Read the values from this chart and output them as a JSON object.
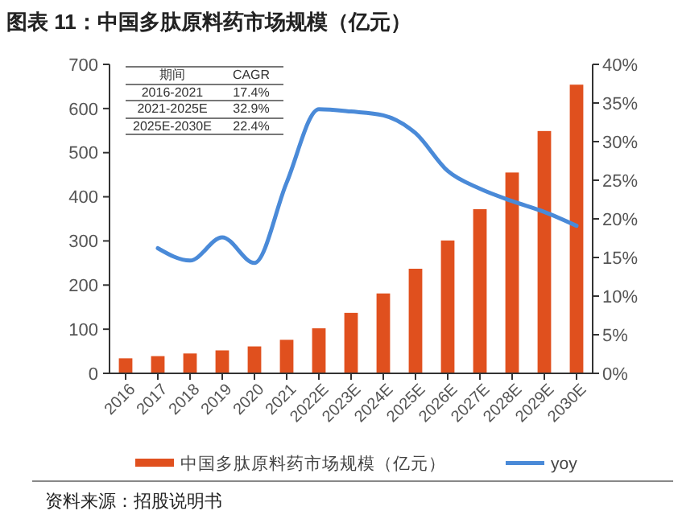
{
  "chart_data": {
    "type": "bar",
    "title": "图表 11：中国多肽原料药市场规模（亿元）",
    "categories": [
      "2016",
      "2017",
      "2018",
      "2019",
      "2020",
      "2021",
      "2022E",
      "2023E",
      "2024E",
      "2025E",
      "2026E",
      "2027E",
      "2028E",
      "2029E",
      "2030E"
    ],
    "series": [
      {
        "name": "中国多肽原料药市场规模（亿元）",
        "color": "#e0501e",
        "values": [
          34,
          39,
          45,
          52,
          61,
          76,
          102,
          137,
          181,
          237,
          301,
          372,
          455,
          549,
          654
        ]
      },
      {
        "name": "yoy",
        "type": "line",
        "axis": "y2",
        "color": "#4a8ad8",
        "values": [
          null,
          16.2,
          14.6,
          17.6,
          14.3,
          24.7,
          34.2,
          33.9,
          33.4,
          31.1,
          26.2,
          23.9,
          22.3,
          20.9,
          19.1
        ]
      }
    ],
    "ylim": [
      0,
      700
    ],
    "yticks": [
      0,
      100,
      200,
      300,
      400,
      500,
      600,
      700
    ],
    "y2lim": [
      0,
      40
    ],
    "y2ticks": [
      {
        "value": 0,
        "label": "0%"
      },
      {
        "value": 5,
        "label": "5%"
      },
      {
        "value": 10,
        "label": "10%"
      },
      {
        "value": 15,
        "label": "15%"
      },
      {
        "value": 20,
        "label": "20%"
      },
      {
        "value": 25,
        "label": "25%"
      },
      {
        "value": 30,
        "label": "30%"
      },
      {
        "value": 35,
        "label": "35%"
      },
      {
        "value": 40,
        "label": "40%"
      }
    ],
    "legend": "bottom",
    "grid": false,
    "annotations": [
      "期间",
      "CAGR",
      "2016-2021",
      "17.4%",
      "2021-2025E",
      "32.9%",
      "2025E-2030E",
      "22.4%",
      "资料来源：招股说明书"
    ]
  }
}
